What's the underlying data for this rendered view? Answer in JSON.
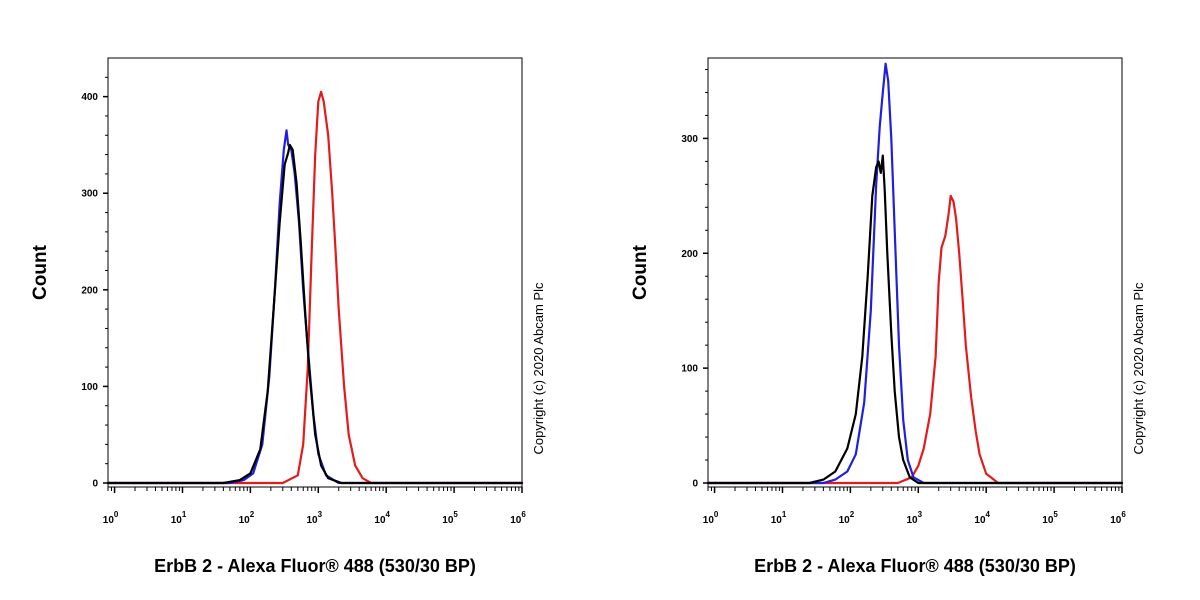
{
  "copyright": "Copyright (c) 2020 Abcam Plc",
  "colors": {
    "red": "#e31b1b",
    "blue": "#1f1fe0",
    "black": "#000000"
  },
  "chart_data": [
    {
      "type": "line",
      "xlabel": "ErbB 2 - Alexa Fluor® 488 (530/30 BP)",
      "ylabel": "Count",
      "x_scale": "log",
      "xlim": [
        0.8,
        1000000
      ],
      "ylim": [
        0,
        440
      ],
      "x_ticks": [
        {
          "value": 1,
          "base": "10",
          "exp": "0"
        },
        {
          "value": 10,
          "base": "10",
          "exp": "1"
        },
        {
          "value": 100,
          "base": "10",
          "exp": "2"
        },
        {
          "value": 1000,
          "base": "10",
          "exp": "3"
        },
        {
          "value": 10000,
          "base": "10",
          "exp": "4"
        },
        {
          "value": 100000,
          "base": "10",
          "exp": "5"
        },
        {
          "value": 1000000,
          "base": "10",
          "exp": "6"
        }
      ],
      "y_ticks": [
        {
          "value": 0,
          "label": "0"
        },
        {
          "value": 100,
          "label": "100"
        },
        {
          "value": 200,
          "label": "200"
        },
        {
          "value": 300,
          "label": "300"
        },
        {
          "value": 400,
          "label": "400"
        }
      ],
      "series": [
        {
          "color": "#e31b1b",
          "x": [
            0.8,
            300,
            500,
            600,
            700,
            800,
            900,
            1000,
            1100,
            1200,
            1400,
            1600,
            1800,
            2000,
            2400,
            2800,
            3500,
            4500,
            6000,
            1000000
          ],
          "y": [
            0,
            0,
            8,
            40,
            120,
            240,
            340,
            395,
            405,
            395,
            360,
            300,
            240,
            180,
            100,
            50,
            18,
            5,
            0,
            0
          ]
        },
        {
          "color": "#1f1fe0",
          "x": [
            0.8,
            50,
            80,
            110,
            150,
            190,
            230,
            270,
            310,
            340,
            360,
            400,
            450,
            520,
            600,
            700,
            850,
            1000,
            1300,
            2000,
            1000000
          ],
          "y": [
            0,
            0,
            3,
            10,
            40,
            110,
            200,
            290,
            345,
            365,
            350,
            345,
            320,
            270,
            200,
            140,
            70,
            30,
            8,
            0,
            0
          ]
        },
        {
          "color": "#000000",
          "x": [
            0.8,
            40,
            70,
            100,
            140,
            180,
            220,
            270,
            320,
            360,
            380,
            420,
            480,
            550,
            650,
            750,
            900,
            1100,
            1400,
            2200,
            1000000
          ],
          "y": [
            0,
            0,
            3,
            10,
            35,
            95,
            180,
            270,
            330,
            342,
            350,
            345,
            310,
            250,
            170,
            110,
            50,
            18,
            5,
            0,
            0
          ]
        }
      ]
    },
    {
      "type": "line",
      "xlabel": "ErbB 2 - Alexa Fluor® 488 (530/30 BP)",
      "ylabel": "Count",
      "x_scale": "log",
      "xlim": [
        0.8,
        1000000
      ],
      "ylim": [
        0,
        370
      ],
      "x_ticks": [
        {
          "value": 1,
          "base": "10",
          "exp": "0"
        },
        {
          "value": 10,
          "base": "10",
          "exp": "1"
        },
        {
          "value": 100,
          "base": "10",
          "exp": "2"
        },
        {
          "value": 1000,
          "base": "10",
          "exp": "3"
        },
        {
          "value": 10000,
          "base": "10",
          "exp": "4"
        },
        {
          "value": 100000,
          "base": "10",
          "exp": "5"
        },
        {
          "value": 1000000,
          "base": "10",
          "exp": "6"
        }
      ],
      "y_ticks": [
        {
          "value": 0,
          "label": "0"
        },
        {
          "value": 100,
          "label": "100"
        },
        {
          "value": 200,
          "label": "200"
        },
        {
          "value": 300,
          "label": "300"
        }
      ],
      "series": [
        {
          "color": "#e31b1b",
          "x": [
            0.8,
            500,
            800,
            1000,
            1200,
            1500,
            1800,
            2000,
            2200,
            2500,
            2800,
            3000,
            3300,
            3600,
            4000,
            4500,
            5000,
            6000,
            7000,
            8000,
            10000,
            15000,
            1000000
          ],
          "y": [
            0,
            0,
            5,
            15,
            30,
            60,
            110,
            175,
            205,
            215,
            235,
            250,
            245,
            230,
            200,
            160,
            120,
            75,
            45,
            25,
            8,
            0,
            0
          ]
        },
        {
          "color": "#1f1fe0",
          "x": [
            0.8,
            40,
            60,
            90,
            120,
            160,
            200,
            240,
            270,
            300,
            330,
            360,
            400,
            450,
            520,
            600,
            700,
            850,
            1200,
            1000000
          ],
          "y": [
            0,
            0,
            3,
            10,
            25,
            70,
            150,
            260,
            310,
            340,
            365,
            350,
            300,
            220,
            120,
            55,
            20,
            5,
            0,
            0
          ]
        },
        {
          "color": "#000000",
          "x": [
            0.8,
            25,
            40,
            60,
            90,
            120,
            150,
            180,
            210,
            240,
            260,
            280,
            300,
            320,
            350,
            400,
            450,
            520,
            600,
            750,
            1000,
            1000000
          ],
          "y": [
            0,
            0,
            3,
            10,
            30,
            60,
            110,
            180,
            250,
            275,
            280,
            270,
            285,
            255,
            200,
            130,
            80,
            40,
            20,
            5,
            0,
            0
          ]
        }
      ]
    }
  ]
}
